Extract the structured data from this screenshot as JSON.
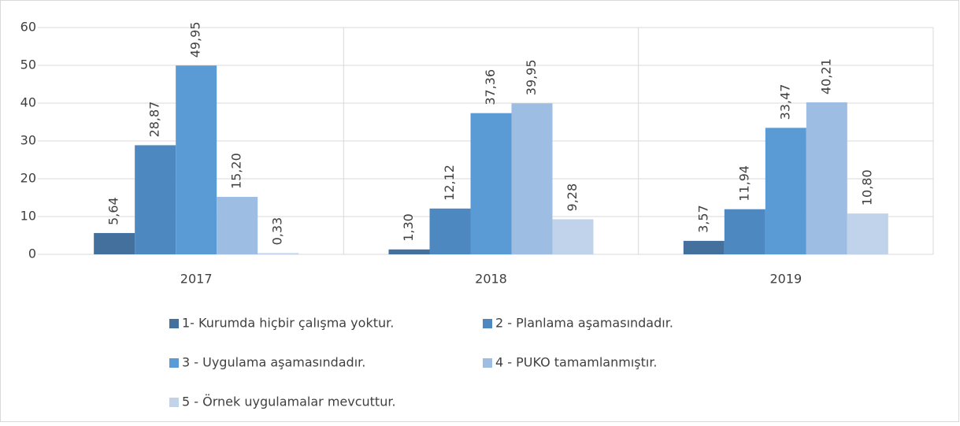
{
  "chart_data": {
    "type": "bar",
    "categories": [
      "2017",
      "2018",
      "2019"
    ],
    "series": [
      {
        "name": "1- Kurumda hiçbir çalışma yoktur.",
        "color": "#44709d",
        "values": [
          5.64,
          1.3,
          3.57
        ],
        "value_labels": [
          "5,64",
          "1,30",
          "3,57"
        ]
      },
      {
        "name": "2 - Planlama aşamasındadır.",
        "color": "#4e88c0",
        "values": [
          28.87,
          12.12,
          11.94
        ],
        "value_labels": [
          "28,87",
          "12,12",
          "11,94"
        ]
      },
      {
        "name": "3 - Uygulama aşamasındadır.",
        "color": "#5b9bd5",
        "values": [
          49.95,
          37.36,
          33.47
        ],
        "value_labels": [
          "49,95",
          "37,36",
          "33,47"
        ]
      },
      {
        "name": "4 - PUKO tamamlanmıştır.",
        "color": "#9dbde3",
        "values": [
          15.2,
          39.95,
          40.21
        ],
        "value_labels": [
          "15,20",
          "39,95",
          "40,21"
        ]
      },
      {
        "name": "5 - Örnek uygulamalar mevcuttur.",
        "color": "#c0d3eb",
        "values": [
          0.33,
          9.28,
          10.8
        ],
        "value_labels": [
          "0,33",
          "9,28",
          "10,80"
        ]
      }
    ],
    "ylim": [
      0,
      60
    ],
    "yticks": [
      0,
      10,
      20,
      30,
      40,
      50,
      60
    ],
    "grid": true,
    "legend": "bottom"
  }
}
